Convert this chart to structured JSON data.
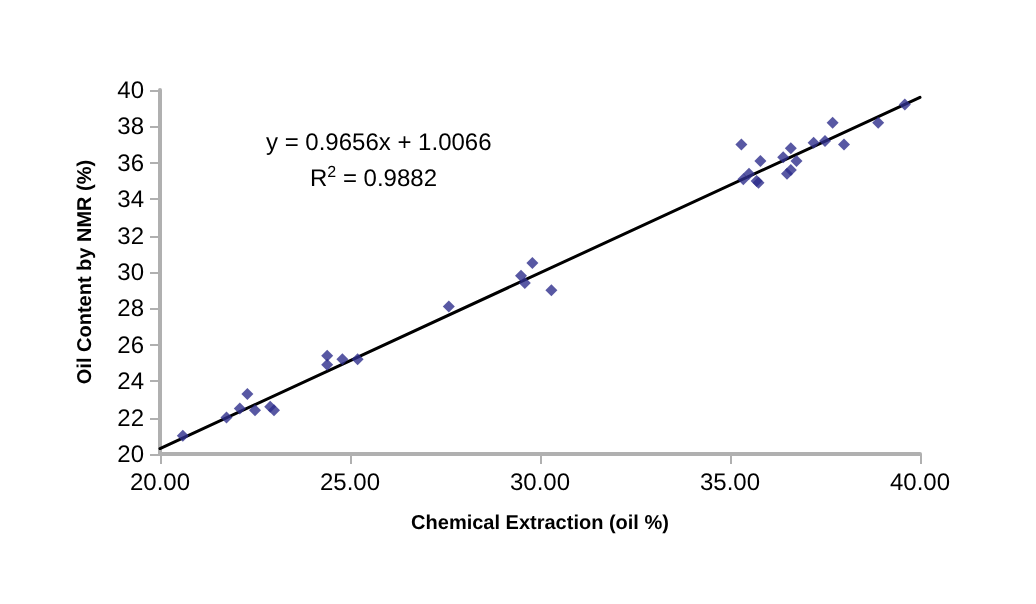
{
  "chart_data": {
    "type": "scatter",
    "xlabel": "Chemical Extraction (oil %)",
    "ylabel": "Oil Content by NMR (%)",
    "annotations": [
      "y = 0.9656x + 1.0066",
      "R$^{2}$ = 0.9882"
    ],
    "xlim": [
      20,
      40
    ],
    "xticks": [
      {
        "value": 20,
        "label": "20.00"
      },
      {
        "value": 25,
        "label": "25.00"
      },
      {
        "value": 30,
        "label": "30.00"
      },
      {
        "value": 35,
        "label": "35.00"
      },
      {
        "value": 40,
        "label": "40.00"
      }
    ],
    "ylim": [
      20,
      40
    ],
    "yticks": [
      20,
      22,
      24,
      26,
      28,
      30,
      32,
      34,
      36,
      38,
      40
    ],
    "grid": false,
    "marker": "diamond",
    "series": [
      {
        "color": "#2e2e8c",
        "x": [
          20.6,
          21.75,
          22.1,
          22.3,
          22.5,
          22.9,
          23.0,
          24.4,
          24.4,
          24.8,
          25.2,
          27.6,
          29.5,
          29.6,
          29.8,
          30.3,
          35.3,
          35.5,
          35.35,
          35.8,
          35.75,
          35.7,
          36.4,
          36.6,
          36.5,
          36.6,
          36.75,
          37.2,
          37.5,
          37.7,
          38.0,
          38.9,
          39.6
        ],
        "values": [
          21.0,
          22.0,
          22.5,
          23.3,
          22.4,
          22.6,
          22.4,
          25.4,
          24.9,
          25.2,
          25.2,
          28.1,
          29.8,
          29.4,
          30.5,
          29.0,
          37.0,
          35.4,
          35.1,
          36.1,
          34.9,
          35.0,
          36.3,
          36.8,
          35.4,
          35.6,
          36.1,
          37.1,
          37.2,
          38.2,
          37.0,
          38.2,
          39.2
        ]
      },
      {
        "type": "line",
        "color": "#000000",
        "marker": "none",
        "x": [
          20,
          40
        ],
        "values": [
          20.3,
          39.6
        ]
      }
    ]
  }
}
